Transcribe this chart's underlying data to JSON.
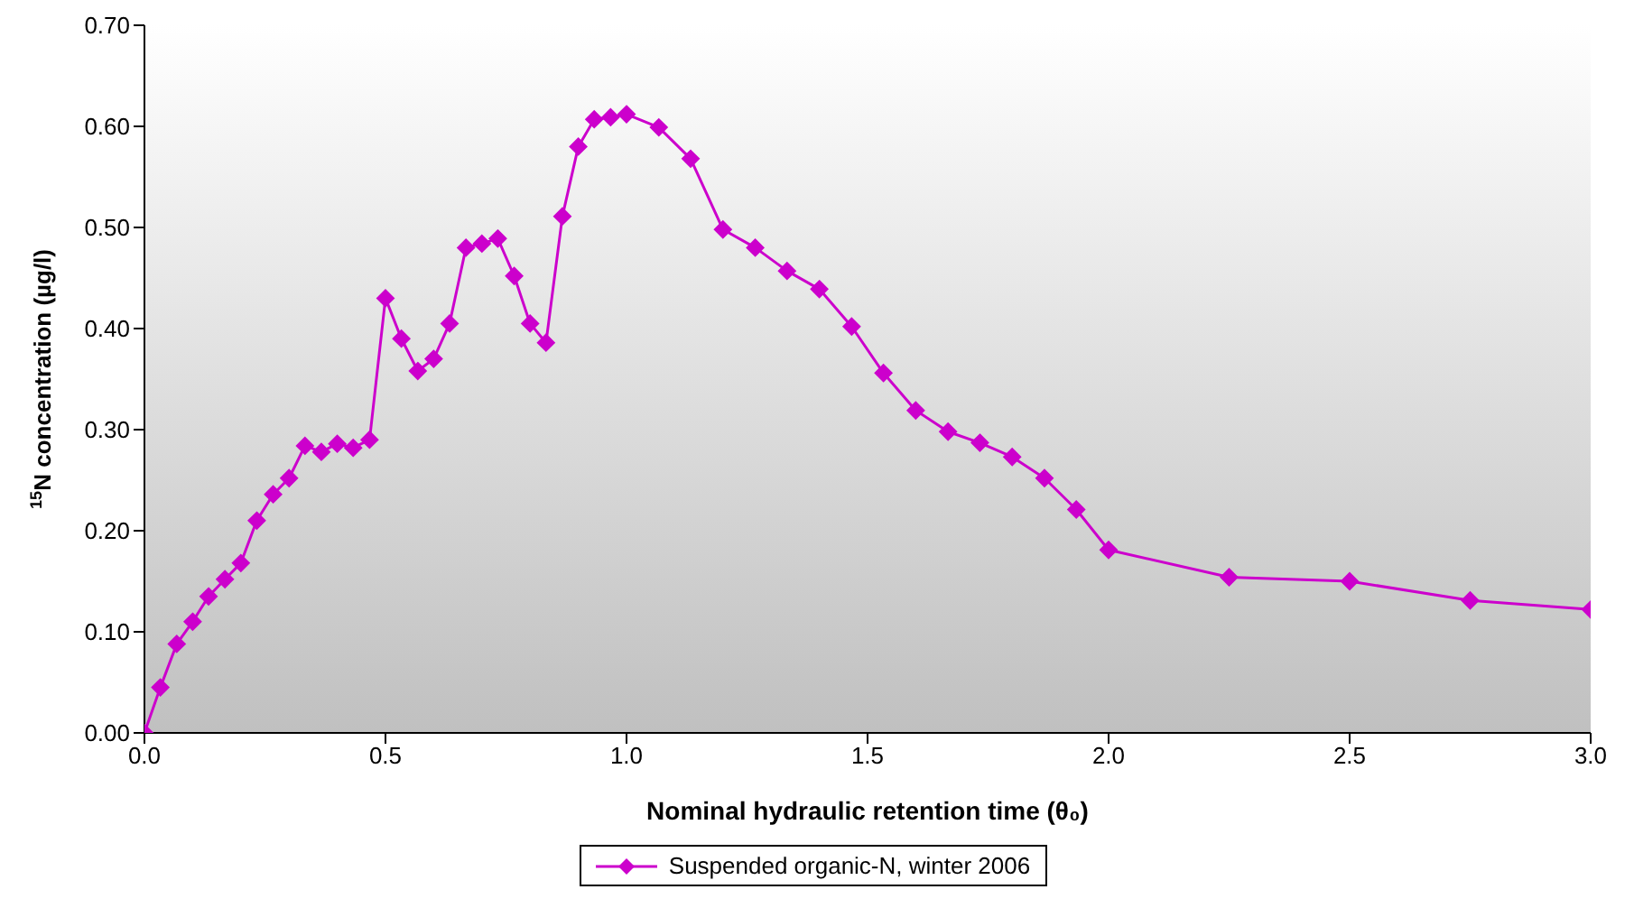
{
  "chart_data": {
    "type": "line",
    "xlabel": "Nominal hydraulic retention time (θ₀)",
    "ylabel": "$^{15}$N concentration (µg/l)",
    "x": [
      0,
      0.033,
      0.067,
      0.1,
      0.133,
      0.167,
      0.2,
      0.233,
      0.267,
      0.3,
      0.333,
      0.367,
      0.4,
      0.433,
      0.467,
      0.5,
      0.533,
      0.567,
      0.6,
      0.633,
      0.667,
      0.7,
      0.733,
      0.767,
      0.8,
      0.833,
      0.867,
      0.9,
      0.933,
      0.967,
      1.0,
      1.067,
      1.133,
      1.2,
      1.267,
      1.333,
      1.4,
      1.467,
      1.533,
      1.6,
      1.667,
      1.733,
      1.8,
      1.867,
      1.933,
      2.0,
      2.25,
      2.5,
      2.75,
      3.0
    ],
    "series": [
      {
        "name": "Suspended organic-N, winter 2006",
        "color": "#cc00cc",
        "values": [
          0,
          0.045,
          0.088,
          0.11,
          0.135,
          0.152,
          0.168,
          0.21,
          0.236,
          0.252,
          0.284,
          0.278,
          0.286,
          0.282,
          0.29,
          0.43,
          0.39,
          0.358,
          0.37,
          0.405,
          0.48,
          0.484,
          0.489,
          0.452,
          0.405,
          0.386,
          0.511,
          0.58,
          0.607,
          0.609,
          0.612,
          0.599,
          0.568,
          0.498,
          0.48,
          0.457,
          0.439,
          0.402,
          0.356,
          0.319,
          0.298,
          0.287,
          0.273,
          0.252,
          0.221,
          0.181,
          0.154,
          0.15,
          0.131,
          0.122
        ]
      }
    ],
    "xlim": [
      0,
      3
    ],
    "xticks": [
      {
        "value": 0,
        "label": "0.0"
      },
      {
        "value": 0.5,
        "label": "0.5"
      },
      {
        "value": 1,
        "label": "1.0"
      },
      {
        "value": 1.5,
        "label": "1.5"
      },
      {
        "value": 2,
        "label": "2.0"
      },
      {
        "value": 2.5,
        "label": "2.5"
      },
      {
        "value": 3,
        "label": "3.0"
      }
    ],
    "ylim": [
      0,
      0.7
    ],
    "yticks": [
      {
        "value": 0,
        "label": "0.00"
      },
      {
        "value": 0.1,
        "label": "0.10"
      },
      {
        "value": 0.2,
        "label": "0.20"
      },
      {
        "value": 0.3,
        "label": "0.30"
      },
      {
        "value": 0.4,
        "label": "0.40"
      },
      {
        "value": 0.5,
        "label": "0.50"
      },
      {
        "value": 0.6,
        "label": "0.60"
      },
      {
        "value": 0.7,
        "label": "0.70"
      }
    ],
    "legend": "bottom",
    "marker": "diamond",
    "line_style": "solid"
  }
}
